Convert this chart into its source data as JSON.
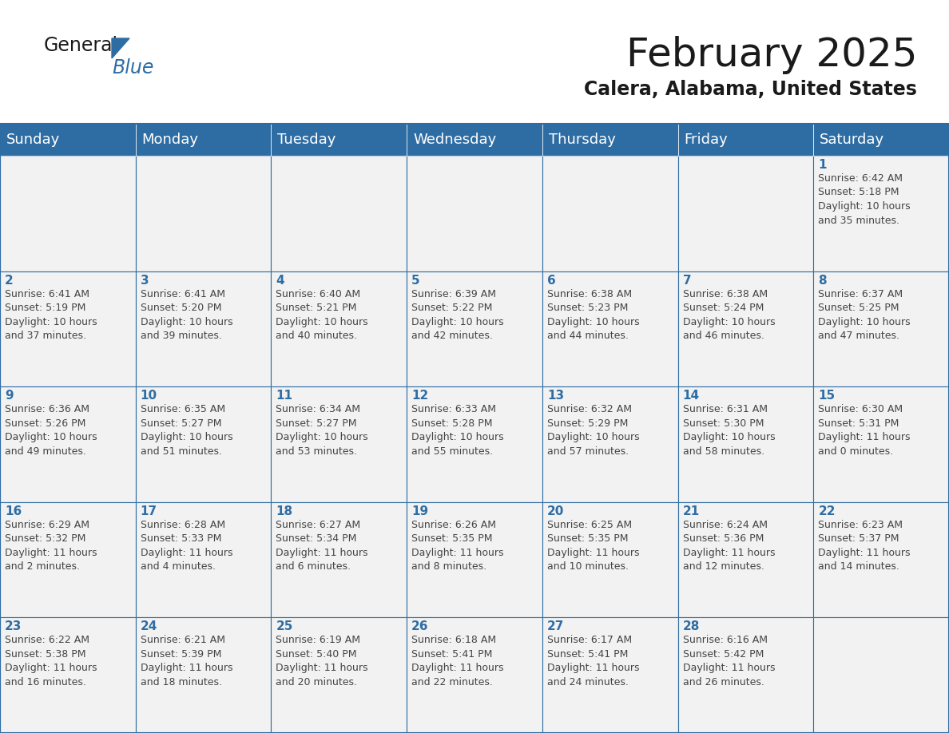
{
  "title": "February 2025",
  "subtitle": "Calera, Alabama, United States",
  "header_bg": "#2E6DA4",
  "header_text": "#FFFFFF",
  "cell_bg": "#F2F2F2",
  "day_number_color": "#2E6DA4",
  "info_text_color": "#444444",
  "border_color": "#2E6DA4",
  "days_of_week": [
    "Sunday",
    "Monday",
    "Tuesday",
    "Wednesday",
    "Thursday",
    "Friday",
    "Saturday"
  ],
  "weeks": [
    [
      {
        "day": 0,
        "info": ""
      },
      {
        "day": 0,
        "info": ""
      },
      {
        "day": 0,
        "info": ""
      },
      {
        "day": 0,
        "info": ""
      },
      {
        "day": 0,
        "info": ""
      },
      {
        "day": 0,
        "info": ""
      },
      {
        "day": 1,
        "info": "Sunrise: 6:42 AM\nSunset: 5:18 PM\nDaylight: 10 hours\nand 35 minutes."
      }
    ],
    [
      {
        "day": 2,
        "info": "Sunrise: 6:41 AM\nSunset: 5:19 PM\nDaylight: 10 hours\nand 37 minutes."
      },
      {
        "day": 3,
        "info": "Sunrise: 6:41 AM\nSunset: 5:20 PM\nDaylight: 10 hours\nand 39 minutes."
      },
      {
        "day": 4,
        "info": "Sunrise: 6:40 AM\nSunset: 5:21 PM\nDaylight: 10 hours\nand 40 minutes."
      },
      {
        "day": 5,
        "info": "Sunrise: 6:39 AM\nSunset: 5:22 PM\nDaylight: 10 hours\nand 42 minutes."
      },
      {
        "day": 6,
        "info": "Sunrise: 6:38 AM\nSunset: 5:23 PM\nDaylight: 10 hours\nand 44 minutes."
      },
      {
        "day": 7,
        "info": "Sunrise: 6:38 AM\nSunset: 5:24 PM\nDaylight: 10 hours\nand 46 minutes."
      },
      {
        "day": 8,
        "info": "Sunrise: 6:37 AM\nSunset: 5:25 PM\nDaylight: 10 hours\nand 47 minutes."
      }
    ],
    [
      {
        "day": 9,
        "info": "Sunrise: 6:36 AM\nSunset: 5:26 PM\nDaylight: 10 hours\nand 49 minutes."
      },
      {
        "day": 10,
        "info": "Sunrise: 6:35 AM\nSunset: 5:27 PM\nDaylight: 10 hours\nand 51 minutes."
      },
      {
        "day": 11,
        "info": "Sunrise: 6:34 AM\nSunset: 5:27 PM\nDaylight: 10 hours\nand 53 minutes."
      },
      {
        "day": 12,
        "info": "Sunrise: 6:33 AM\nSunset: 5:28 PM\nDaylight: 10 hours\nand 55 minutes."
      },
      {
        "day": 13,
        "info": "Sunrise: 6:32 AM\nSunset: 5:29 PM\nDaylight: 10 hours\nand 57 minutes."
      },
      {
        "day": 14,
        "info": "Sunrise: 6:31 AM\nSunset: 5:30 PM\nDaylight: 10 hours\nand 58 minutes."
      },
      {
        "day": 15,
        "info": "Sunrise: 6:30 AM\nSunset: 5:31 PM\nDaylight: 11 hours\nand 0 minutes."
      }
    ],
    [
      {
        "day": 16,
        "info": "Sunrise: 6:29 AM\nSunset: 5:32 PM\nDaylight: 11 hours\nand 2 minutes."
      },
      {
        "day": 17,
        "info": "Sunrise: 6:28 AM\nSunset: 5:33 PM\nDaylight: 11 hours\nand 4 minutes."
      },
      {
        "day": 18,
        "info": "Sunrise: 6:27 AM\nSunset: 5:34 PM\nDaylight: 11 hours\nand 6 minutes."
      },
      {
        "day": 19,
        "info": "Sunrise: 6:26 AM\nSunset: 5:35 PM\nDaylight: 11 hours\nand 8 minutes."
      },
      {
        "day": 20,
        "info": "Sunrise: 6:25 AM\nSunset: 5:35 PM\nDaylight: 11 hours\nand 10 minutes."
      },
      {
        "day": 21,
        "info": "Sunrise: 6:24 AM\nSunset: 5:36 PM\nDaylight: 11 hours\nand 12 minutes."
      },
      {
        "day": 22,
        "info": "Sunrise: 6:23 AM\nSunset: 5:37 PM\nDaylight: 11 hours\nand 14 minutes."
      }
    ],
    [
      {
        "day": 23,
        "info": "Sunrise: 6:22 AM\nSunset: 5:38 PM\nDaylight: 11 hours\nand 16 minutes."
      },
      {
        "day": 24,
        "info": "Sunrise: 6:21 AM\nSunset: 5:39 PM\nDaylight: 11 hours\nand 18 minutes."
      },
      {
        "day": 25,
        "info": "Sunrise: 6:19 AM\nSunset: 5:40 PM\nDaylight: 11 hours\nand 20 minutes."
      },
      {
        "day": 26,
        "info": "Sunrise: 6:18 AM\nSunset: 5:41 PM\nDaylight: 11 hours\nand 22 minutes."
      },
      {
        "day": 27,
        "info": "Sunrise: 6:17 AM\nSunset: 5:41 PM\nDaylight: 11 hours\nand 24 minutes."
      },
      {
        "day": 28,
        "info": "Sunrise: 6:16 AM\nSunset: 5:42 PM\nDaylight: 11 hours\nand 26 minutes."
      },
      {
        "day": 0,
        "info": ""
      }
    ]
  ],
  "header_fontsize": 13,
  "day_num_fontsize": 11,
  "info_fontsize": 9,
  "title_fontsize": 36,
  "subtitle_fontsize": 17,
  "fig_width": 11.88,
  "fig_height": 9.18,
  "fig_dpi": 100
}
